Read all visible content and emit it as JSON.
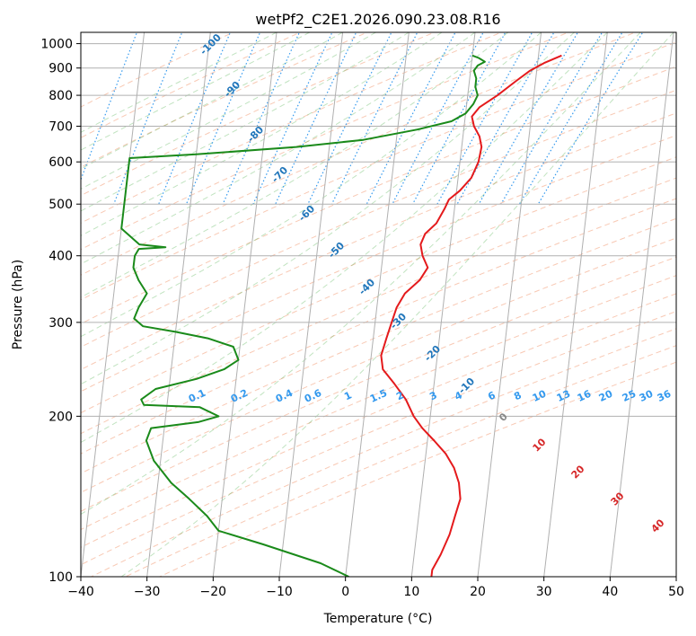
{
  "chart_data": {
    "type": "line",
    "title": "wetPf2_C2E1.2026.090.23.08.R16",
    "xlabel": "Temperature (°C)",
    "ylabel": "Pressure (hPa)",
    "xlim": [
      -40,
      50
    ],
    "ylim": [
      1050,
      100
    ],
    "y_scale": "log",
    "grid": true,
    "x_ticks": [
      -40,
      -30,
      -20,
      -10,
      0,
      10,
      20,
      30,
      40,
      50
    ],
    "y_ticks": [
      1000,
      900,
      800,
      700,
      600,
      500,
      400,
      300,
      200,
      100
    ],
    "colors": {
      "temperature": "#e41a1c",
      "dewpoint": "#1a8a1a",
      "isotherm_labels": "#2277bb",
      "mixing_ratio": "#3399ee",
      "dry_adiabat": "#f4a582",
      "moist_adiabat": "#4daf4a",
      "grid": "#b0b0b0",
      "red_annotations": "#d62728",
      "gray_annotation": "#888888"
    },
    "series": [
      {
        "key": "temperature",
        "points": [
          [
            23.5,
            950
          ],
          [
            21,
            920
          ],
          [
            19,
            890
          ],
          [
            17,
            850
          ],
          [
            14.5,
            800
          ],
          [
            12,
            760
          ],
          [
            11,
            730
          ],
          [
            11.5,
            700
          ],
          [
            12.5,
            670
          ],
          [
            13,
            640
          ],
          [
            12.8,
            600
          ],
          [
            12,
            560
          ],
          [
            10.5,
            530
          ],
          [
            9,
            510
          ],
          [
            8.5,
            490
          ],
          [
            7.5,
            460
          ],
          [
            6,
            440
          ],
          [
            5.5,
            420
          ],
          [
            6,
            400
          ],
          [
            7,
            380
          ],
          [
            6,
            360
          ],
          [
            4,
            340
          ],
          [
            3,
            320
          ],
          [
            2.5,
            300
          ],
          [
            2,
            280
          ],
          [
            1.5,
            260
          ],
          [
            2,
            245
          ],
          [
            4,
            230
          ],
          [
            6,
            215
          ],
          [
            7.5,
            200
          ],
          [
            9,
            190
          ],
          [
            11,
            180
          ],
          [
            13,
            170
          ],
          [
            14.5,
            160
          ],
          [
            15.5,
            150
          ],
          [
            16,
            140
          ],
          [
            15.5,
            130
          ],
          [
            15,
            120
          ],
          [
            14,
            110
          ],
          [
            13,
            103
          ],
          [
            13,
            100
          ]
        ]
      },
      {
        "key": "dewpoint",
        "points": [
          [
            10,
            950
          ],
          [
            11,
            940
          ],
          [
            12,
            925
          ],
          [
            11,
            910
          ],
          [
            10.5,
            890
          ],
          [
            11,
            860
          ],
          [
            11,
            830
          ],
          [
            11.5,
            800
          ],
          [
            11,
            770
          ],
          [
            10,
            740
          ],
          [
            8,
            715
          ],
          [
            3,
            690
          ],
          [
            -5,
            660
          ],
          [
            -15,
            640
          ],
          [
            -30,
            620
          ],
          [
            -40,
            610
          ],
          [
            -40,
            450
          ],
          [
            -37,
            420
          ],
          [
            -33,
            415
          ],
          [
            -37,
            412
          ],
          [
            -37.5,
            400
          ],
          [
            -37.5,
            380
          ],
          [
            -36.5,
            360
          ],
          [
            -35,
            340
          ],
          [
            -36,
            320
          ],
          [
            -36.5,
            305
          ],
          [
            -35,
            295
          ],
          [
            -30,
            288
          ],
          [
            -25,
            280
          ],
          [
            -21,
            270
          ],
          [
            -20,
            255
          ],
          [
            -22,
            245
          ],
          [
            -26,
            235
          ],
          [
            -32,
            225
          ],
          [
            -34,
            215
          ],
          [
            -33.5,
            210
          ],
          [
            -25,
            208
          ],
          [
            -22,
            200
          ],
          [
            -25,
            195
          ],
          [
            -32,
            190
          ],
          [
            -32.5,
            180
          ],
          [
            -31,
            165
          ],
          [
            -28,
            150
          ],
          [
            -25,
            140
          ],
          [
            -22,
            130
          ],
          [
            -20,
            122
          ],
          [
            -13,
            115
          ],
          [
            -4,
            106
          ],
          [
            0.5,
            100
          ]
        ]
      }
    ],
    "isotherm_labels": [
      "-100",
      "-90",
      "-80",
      "-70",
      "-60",
      "-50",
      "-40",
      "-30",
      "-20",
      "-10"
    ],
    "mixing_ratio_labels": [
      "0.1",
      "0.2",
      "0.4",
      "0.6",
      "1",
      "1.5",
      "2",
      "3",
      "4",
      "6",
      "8",
      "10",
      "13",
      "16",
      "20",
      "25",
      "30",
      "36"
    ],
    "red_labels": [
      "10",
      "20",
      "30",
      "40"
    ],
    "gray_label": "0"
  }
}
